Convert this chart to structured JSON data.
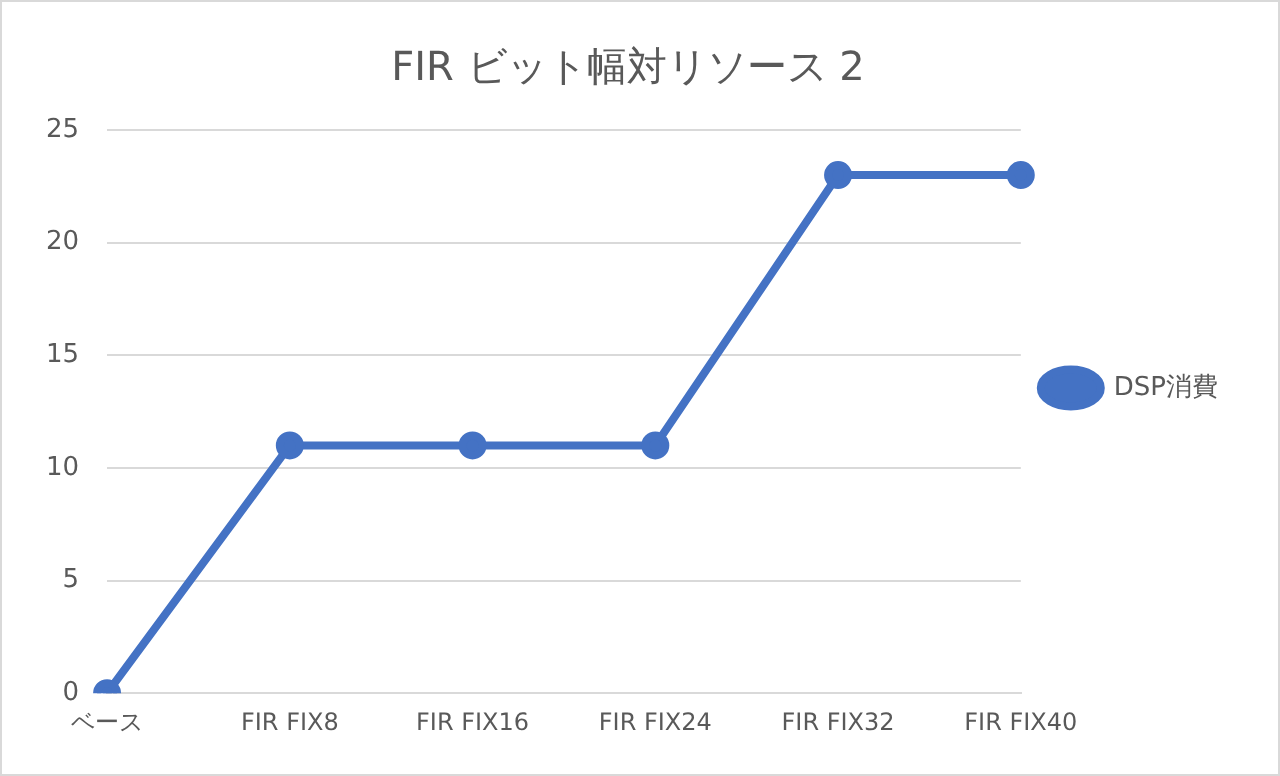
{
  "chart_data": {
    "type": "line",
    "title": "FIR ビット幅対リソース 2",
    "categories": [
      "ベース",
      "FIR FIX8",
      "FIR FIX16",
      "FIR FIX24",
      "FIR FIX32",
      "FIR FIX40"
    ],
    "series": [
      {
        "name": "DSP消費",
        "color": "#4472c4",
        "values": [
          0,
          11,
          11,
          11,
          23,
          23
        ]
      }
    ],
    "ylim": [
      0,
      25
    ],
    "yticks": [
      0,
      5,
      10,
      15,
      20,
      25
    ],
    "grid": "y",
    "legend": "right",
    "marker": "circle",
    "line_style": "solid"
  }
}
